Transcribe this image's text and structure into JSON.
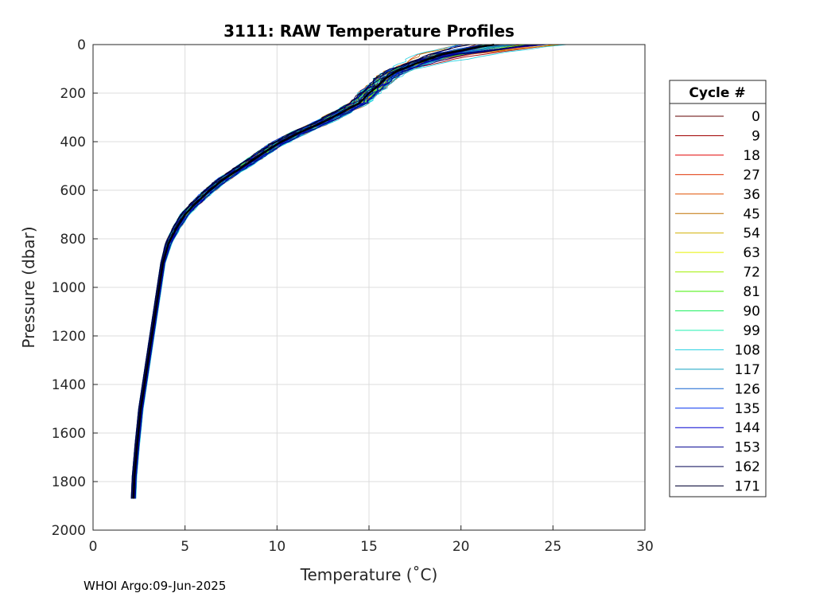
{
  "chart_data": {
    "type": "line",
    "title": "3111: RAW Temperature Profiles",
    "xlabel": "Temperature (˚C)",
    "ylabel": "Pressure (dbar)",
    "xlim": [
      0,
      30
    ],
    "ylim": [
      0,
      2000
    ],
    "y_reversed": true,
    "grid": true,
    "x_ticks": [
      "0",
      "5",
      "10",
      "15",
      "20",
      "25",
      "30"
    ],
    "y_ticks": [
      "0",
      "200",
      "400",
      "600",
      "800",
      "1000",
      "1200",
      "1400",
      "1600",
      "1800",
      "2000"
    ],
    "legend": {
      "title": "Cycle #",
      "placement": "right",
      "entries": [
        {
          "label": "0",
          "color": "#600000"
        },
        {
          "label": "9",
          "color": "#a00000"
        },
        {
          "label": "18",
          "color": "#e00000"
        },
        {
          "label": "27",
          "color": "#e03000"
        },
        {
          "label": "36",
          "color": "#e05000"
        },
        {
          "label": "45",
          "color": "#c07000"
        },
        {
          "label": "54",
          "color": "#d0b000"
        },
        {
          "label": "63",
          "color": "#e8f000"
        },
        {
          "label": "72",
          "color": "#a0f000"
        },
        {
          "label": "81",
          "color": "#40f000"
        },
        {
          "label": "90",
          "color": "#20f060"
        },
        {
          "label": "99",
          "color": "#20f0b0"
        },
        {
          "label": "108",
          "color": "#20d0e0"
        },
        {
          "label": "117",
          "color": "#10a0c0"
        },
        {
          "label": "126",
          "color": "#1060d0"
        },
        {
          "label": "135",
          "color": "#0030f0"
        },
        {
          "label": "144",
          "color": "#0000d0"
        },
        {
          "label": "153",
          "color": "#000090"
        },
        {
          "label": "162",
          "color": "#000050"
        },
        {
          "label": "171",
          "color": "#000030"
        }
      ]
    },
    "mean_profile": {
      "temperature": [
        21.8,
        21.0,
        19.0,
        17.5,
        16.5,
        15.9,
        15.5,
        15.0,
        14.5,
        13.5,
        12.5,
        11.3,
        10.0,
        9.0,
        8.0,
        7.0,
        6.2,
        5.5,
        5.0,
        4.5,
        4.1,
        3.8,
        3.6,
        3.4,
        3.2,
        3.0,
        2.8,
        2.6,
        2.4,
        2.25,
        2.2
      ],
      "pressure": [
        0,
        10,
        40,
        80,
        110,
        140,
        170,
        200,
        240,
        280,
        320,
        360,
        410,
        460,
        510,
        560,
        610,
        660,
        700,
        760,
        820,
        900,
        1000,
        1100,
        1200,
        1300,
        1400,
        1500,
        1650,
        1780,
        1870
      ]
    }
  },
  "footer": {
    "text": "WHOI Argo:09-Jun-2025"
  }
}
